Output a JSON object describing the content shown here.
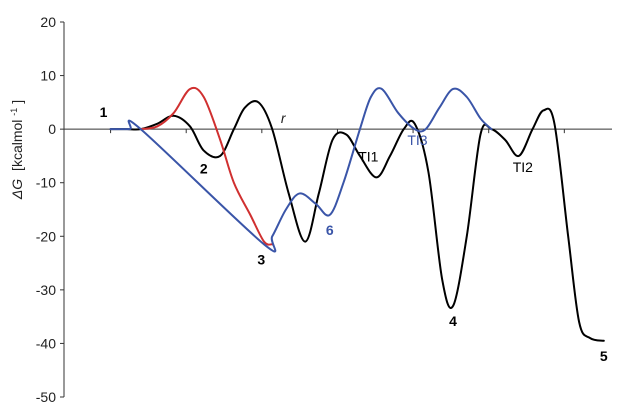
{
  "chart_data": {
    "type": "line",
    "title": "",
    "xlabel": "r",
    "ylabel_symbol": "ΔG",
    "ylabel_unit": "[kcalmol",
    "ylabel_exp": "-1",
    "ylabel_close": "]",
    "ylim": [
      -50,
      20
    ],
    "yticks": [
      20,
      10,
      0,
      -10,
      -20,
      -30,
      -40,
      -50
    ],
    "xlim": [
      0,
      100
    ],
    "grid": false,
    "legend": "none",
    "series": [
      {
        "color": "#000000",
        "points": [
          [
            8.5,
            0
          ],
          [
            11.5,
            0
          ],
          [
            14,
            0
          ],
          [
            17,
            1
          ],
          [
            20,
            2.5
          ],
          [
            23,
            0.5
          ],
          [
            25.5,
            -4
          ],
          [
            28.5,
            -5
          ],
          [
            31,
            0
          ],
          [
            33,
            4
          ],
          [
            35.5,
            5
          ],
          [
            38,
            0
          ],
          [
            41,
            -12
          ],
          [
            44,
            -21
          ],
          [
            46.5,
            -12
          ],
          [
            49,
            -2
          ],
          [
            51.5,
            -1
          ],
          [
            54,
            -5
          ],
          [
            57,
            -9
          ],
          [
            59.5,
            -5
          ],
          [
            62,
            0
          ],
          [
            64,
            1
          ],
          [
            66.5,
            -8
          ],
          [
            69,
            -28
          ],
          [
            71,
            -33
          ],
          [
            73.5,
            -20
          ],
          [
            76,
            -1
          ],
          [
            78,
            0
          ],
          [
            80.5,
            -2
          ],
          [
            83,
            -5
          ],
          [
            85.5,
            0
          ],
          [
            87.5,
            3.5
          ],
          [
            89.5,
            1
          ],
          [
            92,
            -20
          ],
          [
            94,
            -36
          ],
          [
            96,
            -39
          ],
          [
            98.5,
            -39.5
          ]
        ]
      },
      {
        "color": "#d03030",
        "points": [
          [
            14,
            0
          ],
          [
            17,
            0.5
          ],
          [
            20,
            3
          ],
          [
            23,
            7.5
          ],
          [
            25.5,
            6
          ],
          [
            28.5,
            -2
          ],
          [
            31,
            -10
          ],
          [
            34,
            -16
          ],
          [
            36.5,
            -21
          ],
          [
            38,
            -21.5
          ]
        ]
      },
      {
        "color": "#3a55a8",
        "points": [
          [
            8.5,
            0
          ],
          [
            12,
            0
          ],
          [
            14,
            0
          ],
          [
            36.5,
            -21.5
          ],
          [
            38,
            -20
          ],
          [
            40.5,
            -15
          ],
          [
            43,
            -12
          ],
          [
            46,
            -14
          ],
          [
            48.5,
            -16
          ],
          [
            51,
            -10
          ],
          [
            54,
            0
          ],
          [
            56,
            6
          ],
          [
            58,
            7.5
          ],
          [
            61,
            3
          ],
          [
            64,
            0
          ],
          [
            66,
            0
          ],
          [
            68.5,
            4
          ],
          [
            71,
            7.5
          ],
          [
            73.5,
            6
          ],
          [
            76,
            2
          ],
          [
            78,
            0
          ]
        ]
      }
    ],
    "labels": [
      {
        "text": "1",
        "x": 8.5,
        "y": 0,
        "dx": -7,
        "dy": -12,
        "bold": true,
        "color": "#000000"
      },
      {
        "text": "2",
        "x": 25.5,
        "y": -4.5,
        "dx": 0,
        "dy": 20,
        "bold": true,
        "color": "#000000"
      },
      {
        "text": "3",
        "x": 36,
        "y": -21.5,
        "dx": 0,
        "dy": 20,
        "bold": true,
        "color": "#000000"
      },
      {
        "text": "4",
        "x": 71,
        "y": -33,
        "dx": 0,
        "dy": 20,
        "bold": true,
        "color": "#000000"
      },
      {
        "text": "5",
        "x": 98.5,
        "y": -39.5,
        "dx": 0,
        "dy": 20,
        "bold": true,
        "color": "#000000"
      },
      {
        "text": "6",
        "x": 48.5,
        "y": -16,
        "dx": 0,
        "dy": 20,
        "bold": true,
        "color": "#3a55a8"
      },
      {
        "text": "TI1",
        "x": 57,
        "y": -9,
        "dx": -8,
        "dy": -16,
        "bold": false,
        "color": "#000000"
      },
      {
        "text": "TI2",
        "x": 83,
        "y": -5,
        "dx": 4,
        "dy": 16,
        "bold": false,
        "color": "#000000"
      },
      {
        "text": "TI3",
        "x": 64.5,
        "y": 0,
        "dx": 0,
        "dy": 16,
        "bold": false,
        "color": "#3a55a8"
      }
    ]
  }
}
